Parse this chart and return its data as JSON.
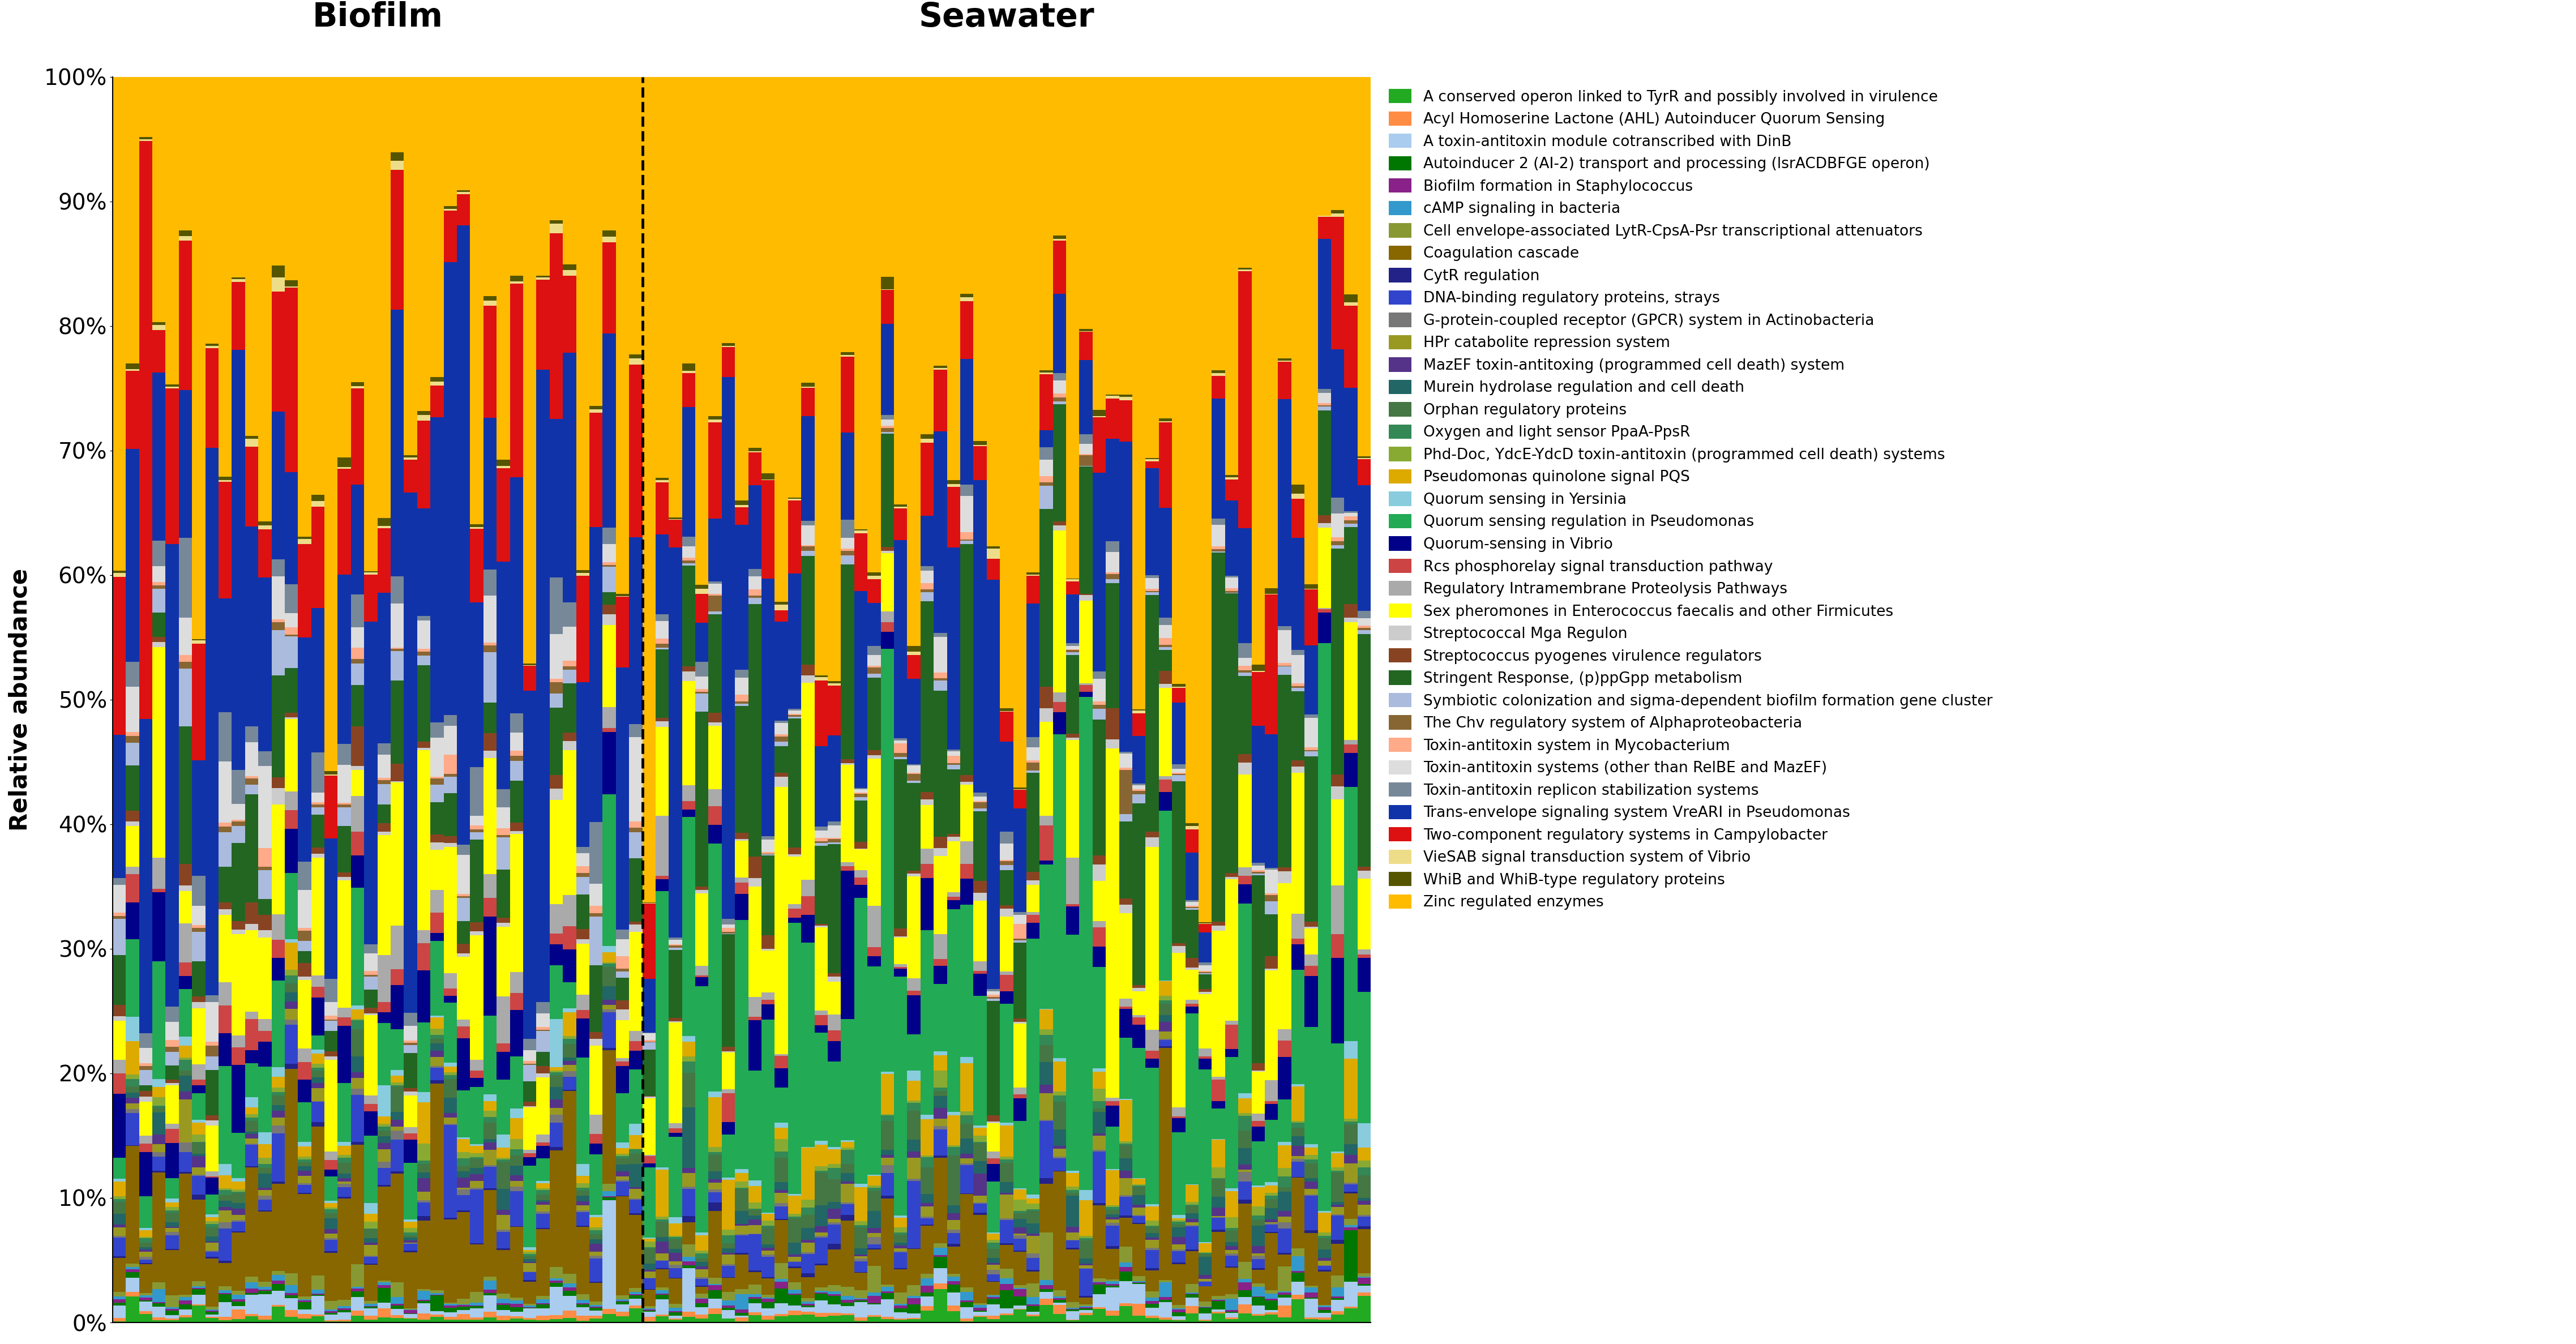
{
  "title_biofilm": "Biofilm",
  "title_seawater": "Seawater",
  "ylabel": "Relative abundance",
  "categories": [
    "A conserved operon linked to TyrR and possibly involved in virulence",
    "Acyl Homoserine Lactone (AHL) Autoinducer Quorum Sensing",
    "A toxin-antitoxin module cotranscribed with DinB",
    "Autoinducer 2 (AI-2) transport and processing (lsrACDBFGE operon)",
    "Biofilm formation in Staphylococcus",
    "cAMP signaling in bacteria",
    "Cell envelope-associated LytR-CpsA-Psr transcriptional attenuators",
    "Coagulation cascade",
    "CytR regulation",
    "DNA-binding regulatory proteins, strays",
    "G-protein-coupled receptor (GPCR) system in Actinobacteria",
    "HPr catabolite repression system",
    "MazEF toxin-antitoxing (programmed cell death) system",
    "Murein hydrolase regulation and cell death",
    "Orphan regulatory proteins",
    "Oxygen and light sensor PpaA-PpsR",
    "Phd-Doc, YdcE-YdcD toxin-antitoxin (programmed cell death) systems",
    "Pseudomonas quinolone signal PQS",
    "Quorum sensing in Yersinia",
    "Quorum sensing regulation in Pseudomonas",
    "Quorum-sensing in Vibrio",
    "Rcs phosphorelay signal transduction pathway",
    "Regulatory Intramembrane Proteolysis Pathways",
    "Sex pheromones in Enterococcus faecalis and other Firmicutes",
    "Streptococcal Mga Regulon",
    "Streptococcus pyogenes virulence regulators",
    "Stringent Response, (p)ppGpp metabolism",
    "Symbiotic colonization and sigma-dependent biofilm formation gene cluster",
    "The Chv regulatory system of Alphaproteobacteria",
    "Toxin-antitoxin system in Mycobacterium",
    "Toxin-antitoxin systems (other than RelBE and MazEF)",
    "Toxin-antitoxin replicon stabilization systems",
    "Trans-envelope signaling system VreARI in Pseudomonas",
    "Two-component regulatory systems in Campylobacter",
    "VieSAB signal transduction system of Vibrio",
    "WhiB and WhiB-type regulatory proteins",
    "Zinc regulated enzymes"
  ],
  "colors": [
    "#22aa22",
    "#ff8c44",
    "#aaccee",
    "#007700",
    "#882288",
    "#3399cc",
    "#889933",
    "#886600",
    "#222288",
    "#3344cc",
    "#777777",
    "#999922",
    "#553388",
    "#226666",
    "#447744",
    "#338855",
    "#88aa33",
    "#ddaa00",
    "#88ccdd",
    "#22aa55",
    "#000088",
    "#cc4444",
    "#aaaaaa",
    "#ffff00",
    "#cccccc",
    "#884422",
    "#226622",
    "#aabbdd",
    "#886633",
    "#ffaa88",
    "#dddddd",
    "#778899",
    "#1133aa",
    "#dd1111",
    "#eedd88",
    "#555500",
    "#ffbb00"
  ],
  "n_biofilm": 40,
  "n_seawater": 55,
  "yticks": [
    0.0,
    0.1,
    0.2,
    0.3,
    0.4,
    0.5,
    0.6,
    0.7,
    0.8,
    0.9,
    1.0
  ],
  "yticklabels": [
    "0%",
    "10%",
    "20%",
    "30%",
    "40%",
    "50%",
    "60%",
    "70%",
    "80%",
    "90%",
    "100%"
  ]
}
